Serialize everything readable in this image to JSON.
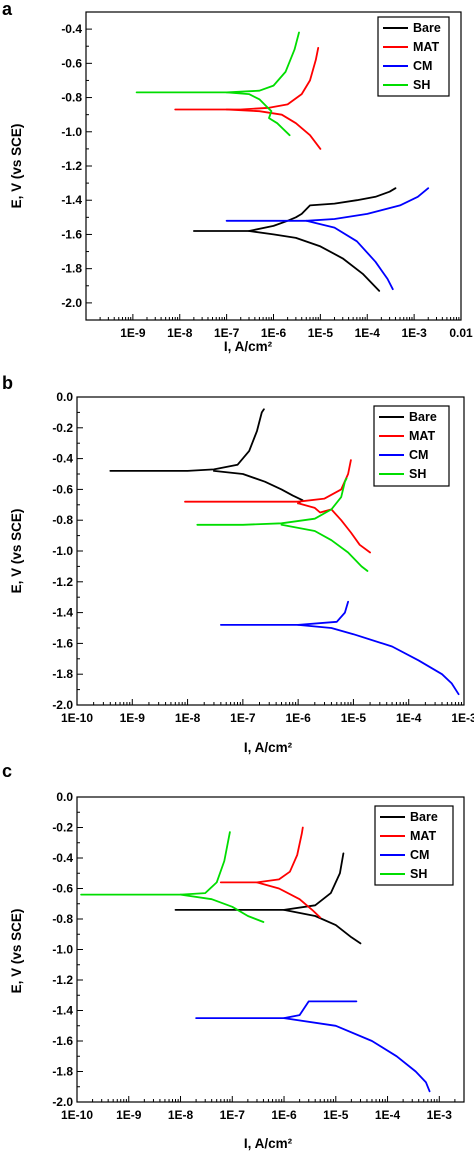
{
  "colors": {
    "Bare": "#000000",
    "MAT": "#ff0000",
    "CM": "#0000ff",
    "SH": "#00dd00"
  },
  "chart_data": [
    {
      "panel": "a",
      "type": "line",
      "xlabel": "I, A/cm²",
      "ylabel": "E, V (vs SCE)",
      "xscale": "log",
      "xlim": [
        1e-10,
        0.01
      ],
      "ylim": [
        -2.1,
        -0.3
      ],
      "xtick_values": [
        1e-09,
        1e-08,
        1e-07,
        1e-06,
        1e-05,
        0.0001,
        0.001,
        0.01
      ],
      "xtick_labels": [
        "1E-9",
        "1E-8",
        "1E-7",
        "1E-6",
        "1E-5",
        "1E-4",
        "1E-3",
        "0.01"
      ],
      "ytick_values": [
        -0.4,
        -0.6,
        -0.8,
        -1.0,
        -1.2,
        -1.4,
        -1.6,
        -1.8,
        -2.0
      ],
      "ytick_labels": [
        "-0.4",
        "-0.6",
        "-0.8",
        "-1.0",
        "-1.2",
        "-1.4",
        "-1.6",
        "-1.8",
        "-2.0"
      ],
      "legend": [
        "Bare",
        "MAT",
        "CM",
        "SH"
      ],
      "legend_position": "top-right",
      "series": [
        {
          "name": "Bare",
          "segments": [
            [
              [
                2e-08,
                -1.58
              ],
              [
                1e-07,
                -1.58
              ],
              [
                3e-07,
                -1.58
              ],
              [
                1e-06,
                -1.55
              ],
              [
                2e-06,
                -1.52
              ],
              [
                3e-06,
                -1.5
              ],
              [
                4e-06,
                -1.48
              ],
              [
                6e-06,
                -1.43
              ],
              [
                2e-05,
                -1.42
              ],
              [
                6e-05,
                -1.4
              ],
              [
                0.00015,
                -1.38
              ],
              [
                0.0003,
                -1.35
              ],
              [
                0.0004,
                -1.33
              ]
            ],
            [
              [
                3e-07,
                -1.58
              ],
              [
                1e-06,
                -1.6
              ],
              [
                3e-06,
                -1.62
              ],
              [
                1e-05,
                -1.67
              ],
              [
                3e-05,
                -1.74
              ],
              [
                8e-05,
                -1.83
              ],
              [
                0.00018,
                -1.93
              ]
            ]
          ]
        },
        {
          "name": "MAT",
          "segments": [
            [
              [
                8e-09,
                -0.87
              ],
              [
                5e-08,
                -0.87
              ],
              [
                2e-07,
                -0.87
              ],
              [
                8e-07,
                -0.86
              ],
              [
                2e-06,
                -0.84
              ],
              [
                4e-06,
                -0.78
              ],
              [
                6e-06,
                -0.7
              ],
              [
                8e-06,
                -0.58
              ],
              [
                9e-06,
                -0.51
              ]
            ],
            [
              [
                1e-07,
                -0.87
              ],
              [
                5e-07,
                -0.88
              ],
              [
                1.5e-06,
                -0.9
              ],
              [
                3e-06,
                -0.95
              ],
              [
                6e-06,
                -1.02
              ],
              [
                1e-05,
                -1.1
              ]
            ]
          ]
        },
        {
          "name": "CM",
          "segments": [
            [
              [
                1e-07,
                -1.52
              ],
              [
                1e-06,
                -1.52
              ],
              [
                5e-06,
                -1.52
              ],
              [
                2e-05,
                -1.51
              ],
              [
                0.0001,
                -1.48
              ],
              [
                0.0005,
                -1.43
              ],
              [
                0.0012,
                -1.38
              ],
              [
                0.002,
                -1.33
              ]
            ],
            [
              [
                5e-06,
                -1.52
              ],
              [
                2e-05,
                -1.56
              ],
              [
                6e-05,
                -1.64
              ],
              [
                0.00015,
                -1.76
              ],
              [
                0.00027,
                -1.86
              ],
              [
                0.00035,
                -1.92
              ]
            ]
          ]
        },
        {
          "name": "SH",
          "segments": [
            [
              [
                1.2e-09,
                -0.77
              ],
              [
                1e-08,
                -0.77
              ],
              [
                1e-07,
                -0.77
              ],
              [
                5e-07,
                -0.76
              ],
              [
                1e-06,
                -0.73
              ],
              [
                1.8e-06,
                -0.65
              ],
              [
                2.8e-06,
                -0.52
              ],
              [
                3.5e-06,
                -0.42
              ]
            ],
            [
              [
                1e-07,
                -0.77
              ],
              [
                3e-07,
                -0.78
              ],
              [
                5e-07,
                -0.81
              ],
              [
                7e-07,
                -0.85
              ],
              [
                9e-07,
                -0.88
              ],
              [
                8e-07,
                -0.92
              ],
              [
                1.2e-06,
                -0.95
              ],
              [
                2.2e-06,
                -1.02
              ]
            ]
          ]
        }
      ]
    },
    {
      "panel": "b",
      "type": "line",
      "xlabel": "I, A/cm²",
      "ylabel": "E, V (vs SCE)",
      "xscale": "log",
      "xlim": [
        1e-10,
        0.001
      ],
      "ylim": [
        -2.0,
        0.0
      ],
      "xtick_values": [
        1e-10,
        1e-09,
        1e-08,
        1e-07,
        1e-06,
        1e-05,
        0.0001,
        0.001
      ],
      "xtick_labels": [
        "1E-10",
        "1E-9",
        "1E-8",
        "1E-7",
        "1E-6",
        "1E-5",
        "1E-4",
        "1E-3"
      ],
      "ytick_values": [
        0.0,
        -0.2,
        -0.4,
        -0.6,
        -0.8,
        -1.0,
        -1.2,
        -1.4,
        -1.6,
        -1.8,
        -2.0
      ],
      "ytick_labels": [
        "0.0",
        "-0.2",
        "-0.4",
        "-0.6",
        "-0.8",
        "-1.0",
        "-1.2",
        "-1.4",
        "-1.6",
        "-1.8",
        "-2.0"
      ],
      "legend": [
        "Bare",
        "MAT",
        "CM",
        "SH"
      ],
      "legend_position": "top-right",
      "series": [
        {
          "name": "Bare",
          "segments": [
            [
              [
                4e-10,
                -0.48
              ],
              [
                2e-09,
                -0.48
              ],
              [
                1e-08,
                -0.48
              ],
              [
                3e-08,
                -0.47
              ],
              [
                8e-08,
                -0.44
              ],
              [
                1.3e-07,
                -0.35
              ],
              [
                1.8e-07,
                -0.22
              ],
              [
                2.2e-07,
                -0.1
              ],
              [
                2.4e-07,
                -0.08
              ]
            ],
            [
              [
                3e-08,
                -0.48
              ],
              [
                1e-07,
                -0.5
              ],
              [
                2.5e-07,
                -0.55
              ],
              [
                5e-07,
                -0.6
              ],
              [
                8e-07,
                -0.64
              ],
              [
                1.2e-06,
                -0.67
              ],
              [
                1e-06,
                -0.69
              ]
            ]
          ]
        },
        {
          "name": "MAT",
          "segments": [
            [
              [
                9e-09,
                -0.68
              ],
              [
                1e-07,
                -0.68
              ],
              [
                1e-06,
                -0.68
              ],
              [
                3e-06,
                -0.66
              ],
              [
                6e-06,
                -0.6
              ],
              [
                8e-06,
                -0.5
              ],
              [
                9e-06,
                -0.41
              ]
            ],
            [
              [
                1e-06,
                -0.69
              ],
              [
                2e-06,
                -0.72
              ],
              [
                2.5e-06,
                -0.75
              ],
              [
                4e-06,
                -0.73
              ],
              [
                6e-06,
                -0.8
              ],
              [
                9e-06,
                -0.88
              ],
              [
                1.3e-05,
                -0.96
              ],
              [
                2e-05,
                -1.01
              ]
            ]
          ]
        },
        {
          "name": "CM",
          "segments": [
            [
              [
                4e-08,
                -1.48
              ],
              [
                1e-06,
                -1.48
              ],
              [
                5e-06,
                -1.46
              ],
              [
                7e-06,
                -1.4
              ],
              [
                8e-06,
                -1.33
              ]
            ],
            [
              [
                1e-06,
                -1.48
              ],
              [
                4e-06,
                -1.5
              ],
              [
                1e-05,
                -1.54
              ],
              [
                5e-05,
                -1.62
              ],
              [
                0.00015,
                -1.71
              ],
              [
                0.0004,
                -1.8
              ],
              [
                0.0006,
                -1.86
              ],
              [
                0.0008,
                -1.93
              ]
            ]
          ]
        },
        {
          "name": "SH",
          "segments": [
            [
              [
                1.5e-08,
                -0.83
              ],
              [
                1e-07,
                -0.83
              ],
              [
                5e-07,
                -0.82
              ],
              [
                2e-06,
                -0.79
              ],
              [
                4e-06,
                -0.73
              ],
              [
                6e-06,
                -0.65
              ],
              [
                7e-06,
                -0.55
              ],
              [
                7.5e-06,
                -0.53
              ]
            ],
            [
              [
                5e-07,
                -0.83
              ],
              [
                2e-06,
                -0.87
              ],
              [
                4e-06,
                -0.93
              ],
              [
                8e-06,
                -1.01
              ],
              [
                1.4e-05,
                -1.1
              ],
              [
                1.8e-05,
                -1.13
              ]
            ]
          ]
        }
      ]
    },
    {
      "panel": "c",
      "type": "line",
      "xlabel": "I, A/cm²",
      "ylabel": "E, V (vs SCE)",
      "xscale": "log",
      "xlim": [
        1e-10,
        0.003
      ],
      "ylim": [
        -2.0,
        0.0
      ],
      "xtick_values": [
        1e-10,
        1e-09,
        1e-08,
        1e-07,
        1e-06,
        1e-05,
        0.0001,
        0.001
      ],
      "xtick_labels": [
        "1E-10",
        "1E-9",
        "1E-8",
        "1E-7",
        "1E-6",
        "1E-5",
        "1E-4",
        "1E-3"
      ],
      "ytick_values": [
        0.0,
        -0.2,
        -0.4,
        -0.6,
        -0.8,
        -1.0,
        -1.2,
        -1.4,
        -1.6,
        -1.8,
        -2.0
      ],
      "ytick_labels": [
        "0.0",
        "-0.2",
        "-0.4",
        "-0.6",
        "-0.8",
        "-1.0",
        "-1.2",
        "-1.4",
        "-1.6",
        "-1.8",
        "-2.0"
      ],
      "legend": [
        "Bare",
        "MAT",
        "CM",
        "SH"
      ],
      "legend_position": "top-right",
      "series": [
        {
          "name": "Bare",
          "segments": [
            [
              [
                8e-09,
                -0.74
              ],
              [
                1e-07,
                -0.74
              ],
              [
                1e-06,
                -0.74
              ],
              [
                4e-06,
                -0.71
              ],
              [
                8e-06,
                -0.63
              ],
              [
                1.2e-05,
                -0.5
              ],
              [
                1.4e-05,
                -0.37
              ]
            ],
            [
              [
                1e-06,
                -0.74
              ],
              [
                4e-06,
                -0.78
              ],
              [
                1e-05,
                -0.84
              ],
              [
                2e-05,
                -0.92
              ],
              [
                3e-05,
                -0.96
              ]
            ]
          ]
        },
        {
          "name": "MAT",
          "segments": [
            [
              [
                6e-08,
                -0.56
              ],
              [
                3e-07,
                -0.56
              ],
              [
                8e-07,
                -0.54
              ],
              [
                1.3e-06,
                -0.49
              ],
              [
                1.8e-06,
                -0.38
              ],
              [
                2.2e-06,
                -0.24
              ],
              [
                2.3e-06,
                -0.2
              ]
            ],
            [
              [
                3e-07,
                -0.56
              ],
              [
                8e-07,
                -0.6
              ],
              [
                2e-06,
                -0.67
              ],
              [
                3.5e-06,
                -0.74
              ],
              [
                5e-06,
                -0.79
              ]
            ]
          ]
        },
        {
          "name": "CM",
          "segments": [
            [
              [
                2e-08,
                -1.45
              ],
              [
                1e-06,
                -1.45
              ],
              [
                2e-06,
                -1.43
              ],
              [
                3e-06,
                -1.34
              ],
              [
                2.5e-05,
                -1.34
              ]
            ],
            [
              [
                1e-06,
                -1.45
              ],
              [
                1e-05,
                -1.5
              ],
              [
                5e-05,
                -1.6
              ],
              [
                0.00015,
                -1.7
              ],
              [
                0.00035,
                -1.8
              ],
              [
                0.00055,
                -1.87
              ],
              [
                0.00065,
                -1.93
              ]
            ]
          ]
        },
        {
          "name": "SH",
          "segments": [
            [
              [
                1.2e-10,
                -0.64
              ],
              [
                1e-09,
                -0.64
              ],
              [
                1e-08,
                -0.64
              ],
              [
                3e-08,
                -0.63
              ],
              [
                5e-08,
                -0.56
              ],
              [
                7e-08,
                -0.42
              ],
              [
                9e-08,
                -0.23
              ]
            ],
            [
              [
                1e-08,
                -0.64
              ],
              [
                4e-08,
                -0.67
              ],
              [
                1e-07,
                -0.72
              ],
              [
                2e-07,
                -0.78
              ],
              [
                4e-07,
                -0.82
              ]
            ]
          ]
        }
      ]
    }
  ]
}
